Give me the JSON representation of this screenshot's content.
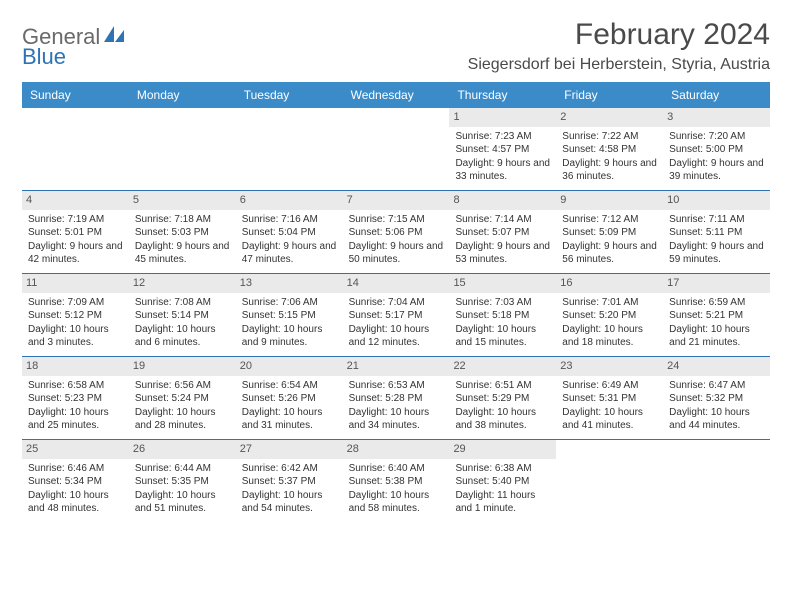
{
  "brand": {
    "general": "General",
    "blue": "Blue"
  },
  "title": "February 2024",
  "location": "Siegersdorf bei Herberstein, Styria, Austria",
  "dayHeaders": [
    "Sunday",
    "Monday",
    "Tuesday",
    "Wednesday",
    "Thursday",
    "Friday",
    "Saturday"
  ],
  "colors": {
    "headerBg": "#3b8bc9",
    "accent": "#2e74b5",
    "dayNumBg": "#eaeaea",
    "text": "#333333",
    "titleText": "#4a4a4a"
  },
  "weeks": [
    [
      {
        "empty": true
      },
      {
        "empty": true
      },
      {
        "empty": true
      },
      {
        "empty": true
      },
      {
        "num": "1",
        "sunrise": "Sunrise: 7:23 AM",
        "sunset": "Sunset: 4:57 PM",
        "daylight": "Daylight: 9 hours and 33 minutes."
      },
      {
        "num": "2",
        "sunrise": "Sunrise: 7:22 AM",
        "sunset": "Sunset: 4:58 PM",
        "daylight": "Daylight: 9 hours and 36 minutes."
      },
      {
        "num": "3",
        "sunrise": "Sunrise: 7:20 AM",
        "sunset": "Sunset: 5:00 PM",
        "daylight": "Daylight: 9 hours and 39 minutes."
      }
    ],
    [
      {
        "num": "4",
        "sunrise": "Sunrise: 7:19 AM",
        "sunset": "Sunset: 5:01 PM",
        "daylight": "Daylight: 9 hours and 42 minutes."
      },
      {
        "num": "5",
        "sunrise": "Sunrise: 7:18 AM",
        "sunset": "Sunset: 5:03 PM",
        "daylight": "Daylight: 9 hours and 45 minutes."
      },
      {
        "num": "6",
        "sunrise": "Sunrise: 7:16 AM",
        "sunset": "Sunset: 5:04 PM",
        "daylight": "Daylight: 9 hours and 47 minutes."
      },
      {
        "num": "7",
        "sunrise": "Sunrise: 7:15 AM",
        "sunset": "Sunset: 5:06 PM",
        "daylight": "Daylight: 9 hours and 50 minutes."
      },
      {
        "num": "8",
        "sunrise": "Sunrise: 7:14 AM",
        "sunset": "Sunset: 5:07 PM",
        "daylight": "Daylight: 9 hours and 53 minutes."
      },
      {
        "num": "9",
        "sunrise": "Sunrise: 7:12 AM",
        "sunset": "Sunset: 5:09 PM",
        "daylight": "Daylight: 9 hours and 56 minutes."
      },
      {
        "num": "10",
        "sunrise": "Sunrise: 7:11 AM",
        "sunset": "Sunset: 5:11 PM",
        "daylight": "Daylight: 9 hours and 59 minutes."
      }
    ],
    [
      {
        "num": "11",
        "sunrise": "Sunrise: 7:09 AM",
        "sunset": "Sunset: 5:12 PM",
        "daylight": "Daylight: 10 hours and 3 minutes."
      },
      {
        "num": "12",
        "sunrise": "Sunrise: 7:08 AM",
        "sunset": "Sunset: 5:14 PM",
        "daylight": "Daylight: 10 hours and 6 minutes."
      },
      {
        "num": "13",
        "sunrise": "Sunrise: 7:06 AM",
        "sunset": "Sunset: 5:15 PM",
        "daylight": "Daylight: 10 hours and 9 minutes."
      },
      {
        "num": "14",
        "sunrise": "Sunrise: 7:04 AM",
        "sunset": "Sunset: 5:17 PM",
        "daylight": "Daylight: 10 hours and 12 minutes."
      },
      {
        "num": "15",
        "sunrise": "Sunrise: 7:03 AM",
        "sunset": "Sunset: 5:18 PM",
        "daylight": "Daylight: 10 hours and 15 minutes."
      },
      {
        "num": "16",
        "sunrise": "Sunrise: 7:01 AM",
        "sunset": "Sunset: 5:20 PM",
        "daylight": "Daylight: 10 hours and 18 minutes."
      },
      {
        "num": "17",
        "sunrise": "Sunrise: 6:59 AM",
        "sunset": "Sunset: 5:21 PM",
        "daylight": "Daylight: 10 hours and 21 minutes."
      }
    ],
    [
      {
        "num": "18",
        "sunrise": "Sunrise: 6:58 AM",
        "sunset": "Sunset: 5:23 PM",
        "daylight": "Daylight: 10 hours and 25 minutes."
      },
      {
        "num": "19",
        "sunrise": "Sunrise: 6:56 AM",
        "sunset": "Sunset: 5:24 PM",
        "daylight": "Daylight: 10 hours and 28 minutes."
      },
      {
        "num": "20",
        "sunrise": "Sunrise: 6:54 AM",
        "sunset": "Sunset: 5:26 PM",
        "daylight": "Daylight: 10 hours and 31 minutes."
      },
      {
        "num": "21",
        "sunrise": "Sunrise: 6:53 AM",
        "sunset": "Sunset: 5:28 PM",
        "daylight": "Daylight: 10 hours and 34 minutes."
      },
      {
        "num": "22",
        "sunrise": "Sunrise: 6:51 AM",
        "sunset": "Sunset: 5:29 PM",
        "daylight": "Daylight: 10 hours and 38 minutes."
      },
      {
        "num": "23",
        "sunrise": "Sunrise: 6:49 AM",
        "sunset": "Sunset: 5:31 PM",
        "daylight": "Daylight: 10 hours and 41 minutes."
      },
      {
        "num": "24",
        "sunrise": "Sunrise: 6:47 AM",
        "sunset": "Sunset: 5:32 PM",
        "daylight": "Daylight: 10 hours and 44 minutes."
      }
    ],
    [
      {
        "num": "25",
        "sunrise": "Sunrise: 6:46 AM",
        "sunset": "Sunset: 5:34 PM",
        "daylight": "Daylight: 10 hours and 48 minutes."
      },
      {
        "num": "26",
        "sunrise": "Sunrise: 6:44 AM",
        "sunset": "Sunset: 5:35 PM",
        "daylight": "Daylight: 10 hours and 51 minutes."
      },
      {
        "num": "27",
        "sunrise": "Sunrise: 6:42 AM",
        "sunset": "Sunset: 5:37 PM",
        "daylight": "Daylight: 10 hours and 54 minutes."
      },
      {
        "num": "28",
        "sunrise": "Sunrise: 6:40 AM",
        "sunset": "Sunset: 5:38 PM",
        "daylight": "Daylight: 10 hours and 58 minutes."
      },
      {
        "num": "29",
        "sunrise": "Sunrise: 6:38 AM",
        "sunset": "Sunset: 5:40 PM",
        "daylight": "Daylight: 11 hours and 1 minute."
      },
      {
        "empty": true
      },
      {
        "empty": true
      }
    ]
  ]
}
